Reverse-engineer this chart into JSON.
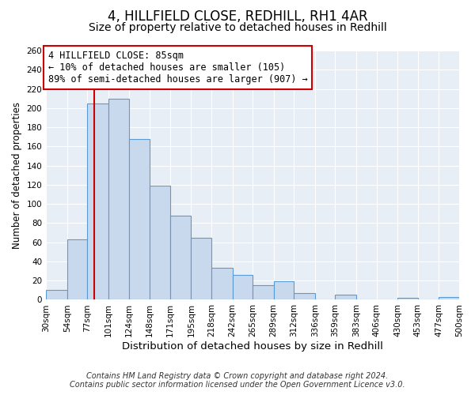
{
  "title": "4, HILLFIELD CLOSE, REDHILL, RH1 4AR",
  "subtitle": "Size of property relative to detached houses in Redhill",
  "xlabel": "Distribution of detached houses by size in Redhill",
  "ylabel": "Number of detached properties",
  "footer_lines": [
    "Contains HM Land Registry data © Crown copyright and database right 2024.",
    "Contains public sector information licensed under the Open Government Licence v3.0."
  ],
  "bin_edges": [
    30,
    54,
    77,
    101,
    124,
    148,
    171,
    195,
    218,
    242,
    265,
    289,
    312,
    336,
    359,
    383,
    406,
    430,
    453,
    477,
    500
  ],
  "bar_heights": [
    10,
    63,
    205,
    210,
    168,
    119,
    88,
    65,
    33,
    26,
    15,
    19,
    7,
    0,
    5,
    0,
    0,
    2,
    0,
    3
  ],
  "bar_color": "#c8d9ed",
  "bar_edge_color": "#5b9bd5",
  "vline_x": 85,
  "vline_color": "#cc0000",
  "annotation_line1": "4 HILLFIELD CLOSE: 85sqm",
  "annotation_line2": "← 10% of detached houses are smaller (105)",
  "annotation_line3": "89% of semi-detached houses are larger (907) →",
  "annotation_box_color": "white",
  "annotation_box_edge_color": "#cc0000",
  "ylim": [
    0,
    260
  ],
  "yticks": [
    0,
    20,
    40,
    60,
    80,
    100,
    120,
    140,
    160,
    180,
    200,
    220,
    240,
    260
  ],
  "background_color": "#e8eef5",
  "grid_color": "white",
  "title_fontsize": 12,
  "subtitle_fontsize": 10,
  "xlabel_fontsize": 9.5,
  "ylabel_fontsize": 8.5,
  "tick_fontsize": 7.5,
  "footer_fontsize": 7,
  "annotation_fontsize": 8.5
}
